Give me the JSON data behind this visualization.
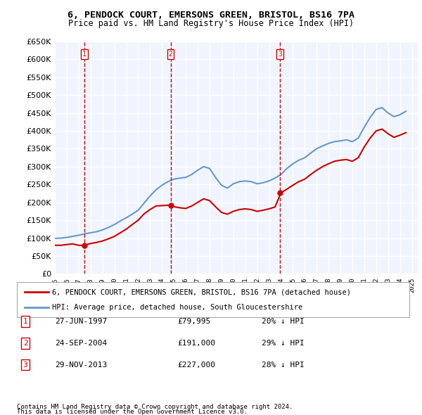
{
  "title": "6, PENDOCK COURT, EMERSONS GREEN, BRISTOL, BS16 7PA",
  "subtitle": "Price paid vs. HM Land Registry's House Price Index (HPI)",
  "ylabel_ticks": [
    "£0",
    "£50K",
    "£100K",
    "£150K",
    "£200K",
    "£250K",
    "£300K",
    "£350K",
    "£400K",
    "£450K",
    "£500K",
    "£550K",
    "£600K",
    "£650K"
  ],
  "ylim": [
    0,
    650000
  ],
  "yticks": [
    0,
    50000,
    100000,
    150000,
    200000,
    250000,
    300000,
    350000,
    400000,
    450000,
    500000,
    550000,
    600000,
    650000
  ],
  "xlim_start": 1995.0,
  "xlim_end": 2025.5,
  "sale_color": "#cc0000",
  "hpi_color": "#6699cc",
  "vline_color": "#cc0000",
  "transactions": [
    {
      "num": 1,
      "date": "27-JUN-1997",
      "price": 79995,
      "year": 1997.49,
      "label": "£79,995",
      "pct": "20% ↓ HPI"
    },
    {
      "num": 2,
      "date": "24-SEP-2004",
      "price": 191000,
      "year": 2004.73,
      "label": "£191,000",
      "pct": "29% ↓ HPI"
    },
    {
      "num": 3,
      "date": "29-NOV-2013",
      "price": 227000,
      "year": 2013.91,
      "label": "£227,000",
      "pct": "28% ↓ HPI"
    }
  ],
  "hpi_data": {
    "years": [
      1995.0,
      1995.5,
      1996.0,
      1996.5,
      1997.0,
      1997.5,
      1998.0,
      1998.5,
      1999.0,
      1999.5,
      2000.0,
      2000.5,
      2001.0,
      2001.5,
      2002.0,
      2002.5,
      2003.0,
      2003.5,
      2004.0,
      2004.5,
      2005.0,
      2005.5,
      2006.0,
      2006.5,
      2007.0,
      2007.5,
      2008.0,
      2008.5,
      2009.0,
      2009.5,
      2010.0,
      2010.5,
      2011.0,
      2011.5,
      2012.0,
      2012.5,
      2013.0,
      2013.5,
      2014.0,
      2014.5,
      2015.0,
      2015.5,
      2016.0,
      2016.5,
      2017.0,
      2017.5,
      2018.0,
      2018.5,
      2019.0,
      2019.5,
      2020.0,
      2020.5,
      2021.0,
      2021.5,
      2022.0,
      2022.5,
      2023.0,
      2023.5,
      2024.0,
      2024.5
    ],
    "values": [
      99500,
      100000,
      102000,
      105000,
      108000,
      112000,
      115000,
      118000,
      123000,
      130000,
      138000,
      148000,
      157000,
      167000,
      178000,
      198000,
      218000,
      235000,
      248000,
      258000,
      265000,
      268000,
      270000,
      278000,
      290000,
      300000,
      295000,
      270000,
      248000,
      240000,
      252000,
      258000,
      260000,
      258000,
      252000,
      255000,
      260000,
      268000,
      278000,
      295000,
      308000,
      318000,
      325000,
      338000,
      350000,
      358000,
      365000,
      370000,
      372000,
      375000,
      370000,
      380000,
      410000,
      438000,
      460000,
      465000,
      450000,
      440000,
      445000,
      455000
    ]
  },
  "sale_price_data": {
    "years": [
      1995.0,
      1995.5,
      1996.0,
      1996.5,
      1997.0,
      1997.5,
      1998.0,
      1998.5,
      1999.0,
      1999.5,
      2000.0,
      2000.5,
      2001.0,
      2001.5,
      2002.0,
      2002.5,
      2003.0,
      2003.5,
      2004.0,
      2004.5,
      2005.0,
      2005.5,
      2006.0,
      2006.5,
      2007.0,
      2007.5,
      2008.0,
      2008.5,
      2009.0,
      2009.5,
      2010.0,
      2010.5,
      2011.0,
      2011.5,
      2012.0,
      2012.5,
      2013.0,
      2013.5,
      2014.0,
      2014.5,
      2015.0,
      2015.5,
      2016.0,
      2016.5,
      2017.0,
      2017.5,
      2018.0,
      2018.5,
      2019.0,
      2019.5,
      2020.0,
      2020.5,
      2021.0,
      2021.5,
      2022.0,
      2022.5,
      2023.0,
      2023.5,
      2024.0,
      2024.5
    ],
    "values": [
      79995,
      79995,
      82000,
      84000,
      79995,
      79995,
      85000,
      88000,
      92000,
      98000,
      105000,
      115000,
      125000,
      138000,
      150000,
      168000,
      180000,
      190000,
      191000,
      192000,
      188000,
      185000,
      183000,
      190000,
      200000,
      210000,
      205000,
      188000,
      172000,
      167000,
      175000,
      180000,
      182000,
      180000,
      175000,
      178000,
      182000,
      187000,
      227000,
      237000,
      248000,
      258000,
      265000,
      278000,
      290000,
      300000,
      308000,
      315000,
      318000,
      320000,
      315000,
      325000,
      355000,
      380000,
      400000,
      405000,
      392000,
      382000,
      388000,
      395000
    ]
  },
  "legend_label_red": "6, PENDOCK COURT, EMERSONS GREEN, BRISTOL, BS16 7PA (detached house)",
  "legend_label_blue": "HPI: Average price, detached house, South Gloucestershire",
  "footer1": "Contains HM Land Registry data © Crown copyright and database right 2024.",
  "footer2": "This data is licensed under the Open Government Licence v3.0.",
  "background_color": "#ffffff",
  "plot_bg_color": "#f0f4ff",
  "grid_color": "#ffffff"
}
